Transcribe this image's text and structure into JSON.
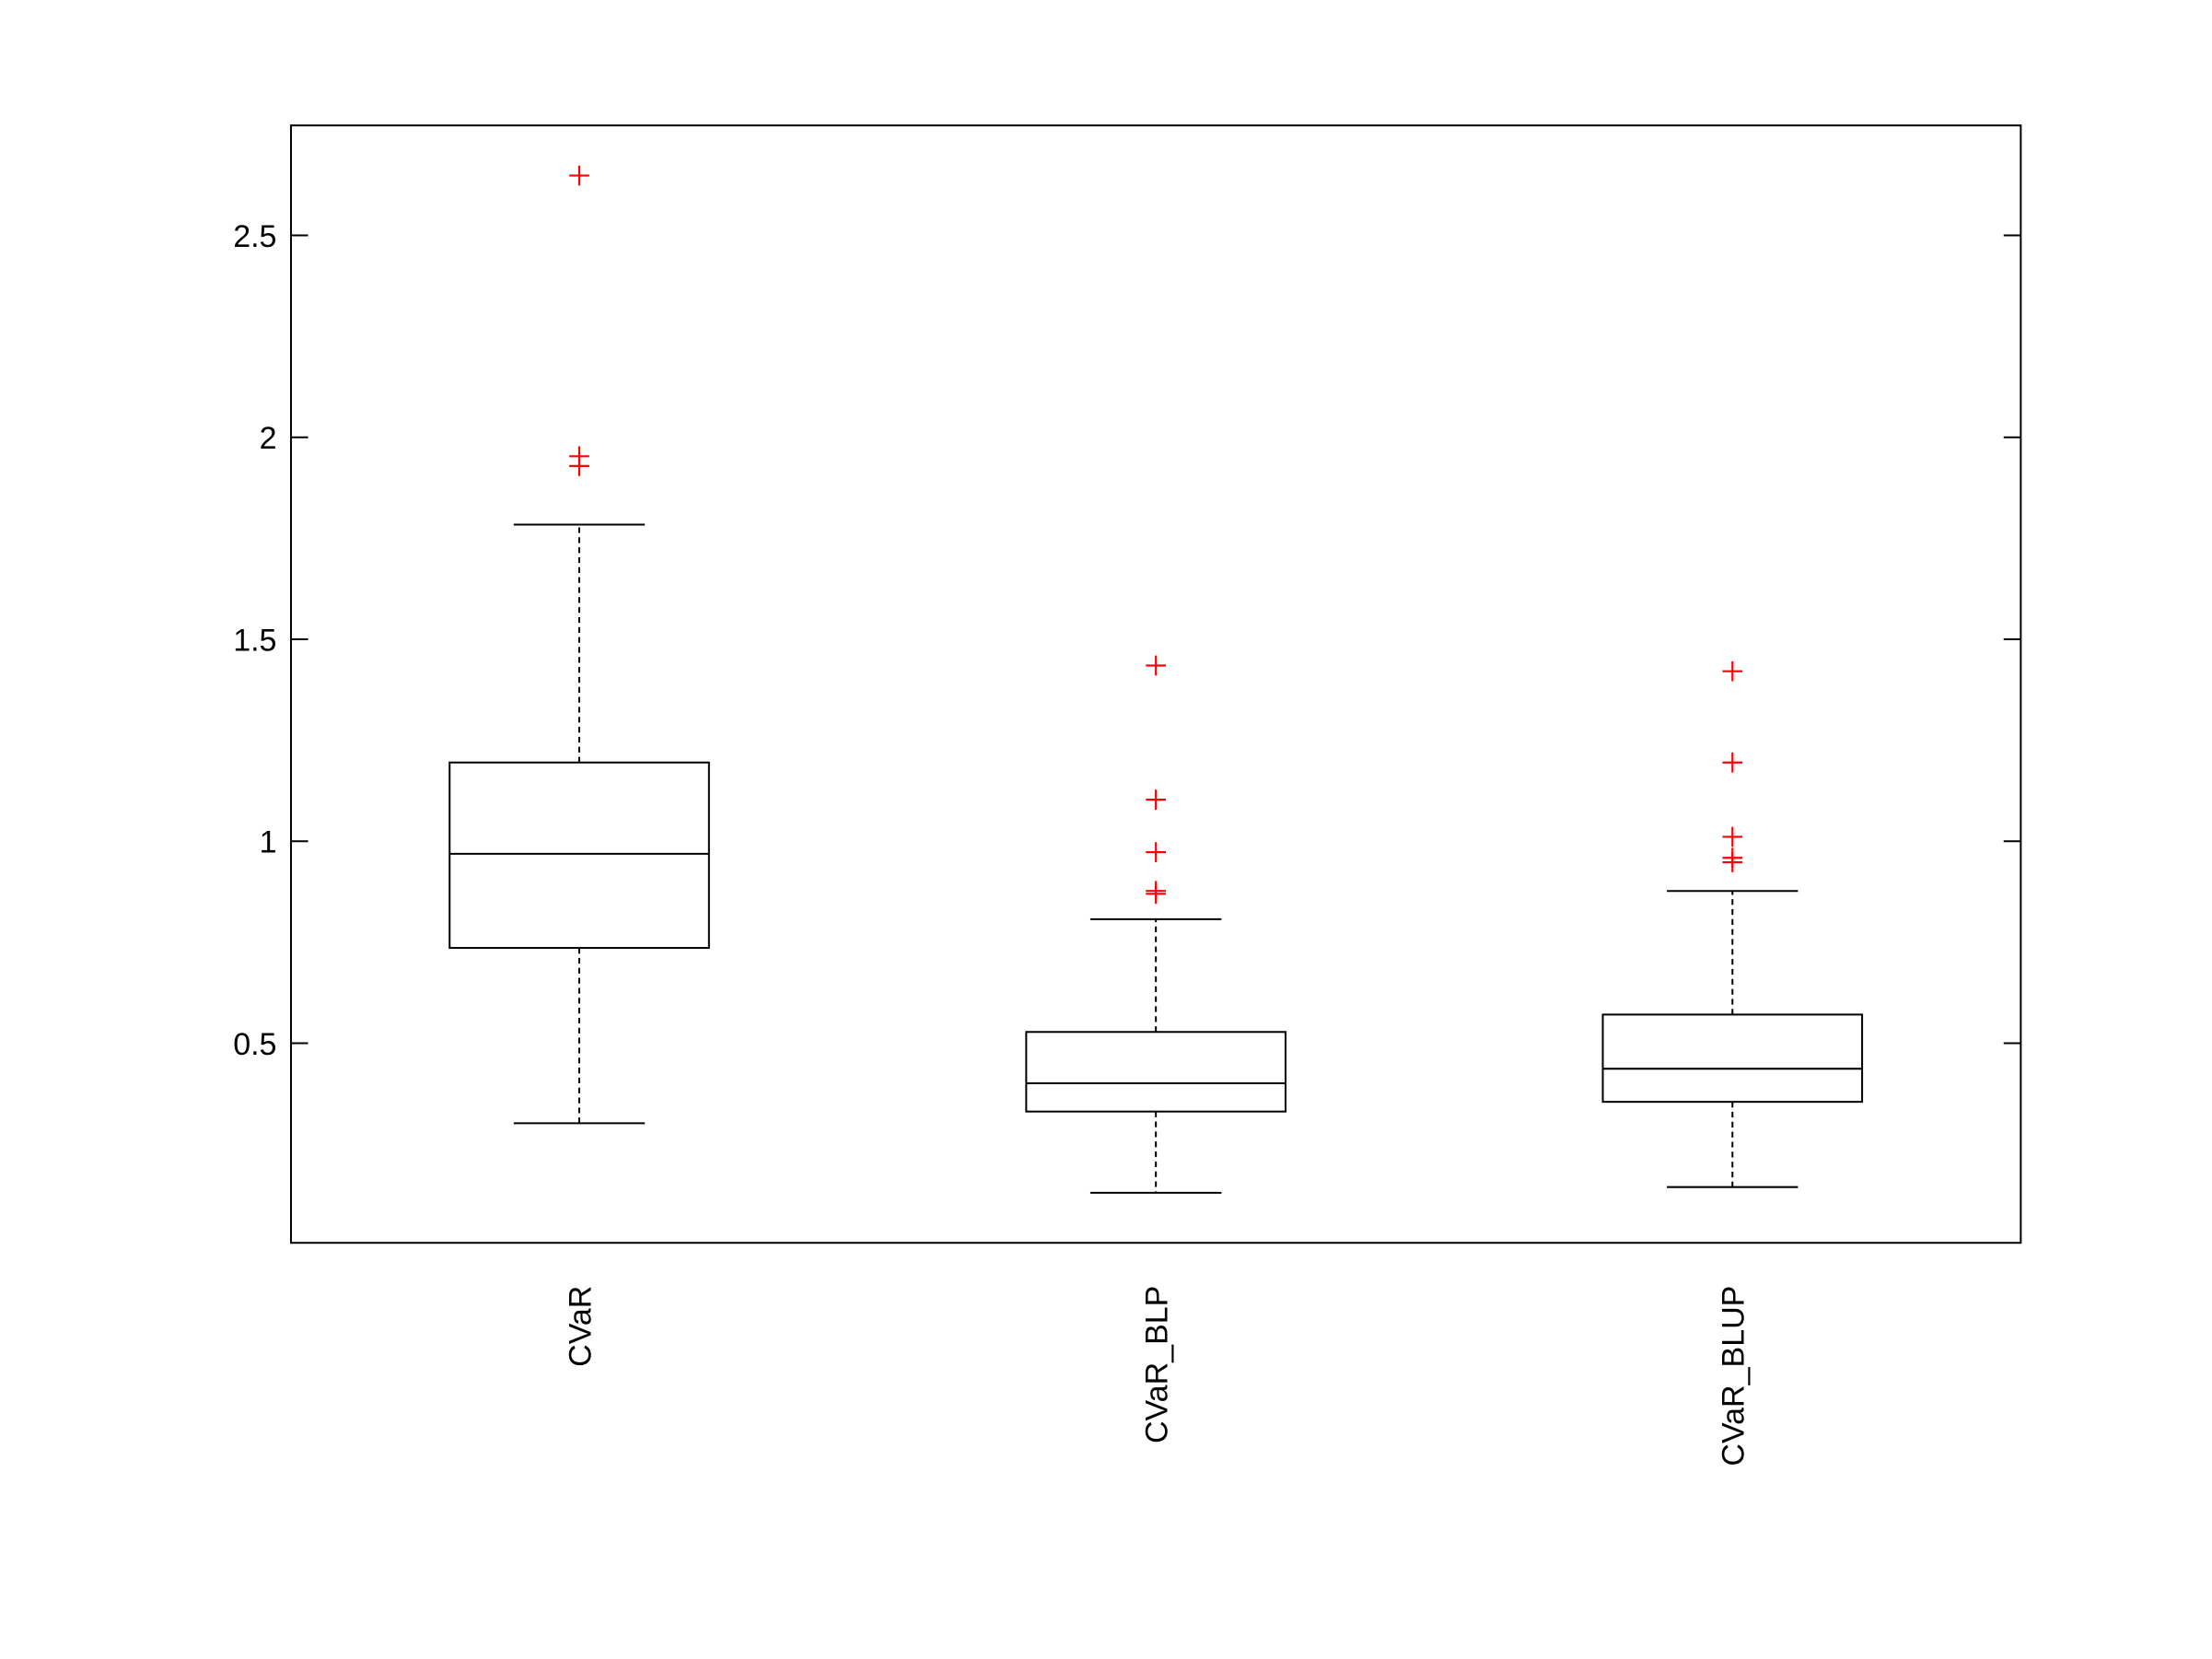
{
  "chart_data": {
    "type": "box",
    "categories": [
      "CVaR",
      "CVaR_BLP",
      "CVaR_BLUP"
    ],
    "color": "#000000",
    "outlier_color": "#ff0000",
    "whisker_low": [
      0.302,
      0.13,
      0.144
    ],
    "q1": [
      0.736,
      0.331,
      0.355
    ],
    "median": [
      0.969,
      0.401,
      0.437
    ],
    "q3": [
      1.195,
      0.528,
      0.571
    ],
    "whisker_high": [
      1.784,
      0.807,
      0.877
    ],
    "outliers": [
      [
        2.648,
        1.953,
        1.929
      ],
      [
        1.435,
        1.103,
        0.973,
        0.877,
        0.87
      ],
      [
        1.421,
        1.195,
        1.011,
        0.959,
        0.948
      ]
    ],
    "ylim": [
      0.006,
      2.772
    ],
    "yticks": [
      0.5,
      1,
      1.5,
      2,
      2.5
    ]
  }
}
